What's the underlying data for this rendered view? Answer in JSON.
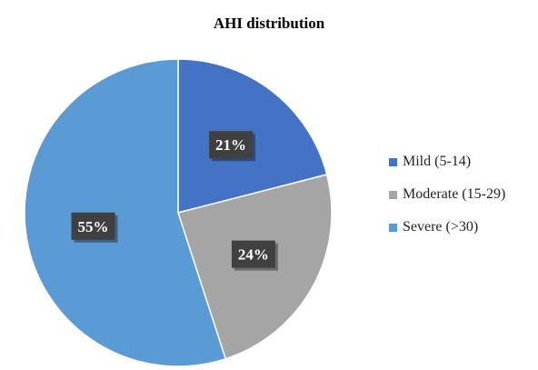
{
  "chart_data": {
    "type": "pie",
    "title": "AHI distribution",
    "slices": [
      {
        "label": "Mild (5-14)",
        "value": 21,
        "data_label": "21%",
        "color": "#4472C4"
      },
      {
        "label": "Moderate (15-29)",
        "value": 24,
        "data_label": "24%",
        "color": "#A5A5A5"
      },
      {
        "label": "Severe (>30)",
        "value": 55,
        "data_label": "55%",
        "color": "#5B9BD5"
      }
    ],
    "legend_position": "right",
    "start_angle": "12 o'clock, clockwise"
  }
}
